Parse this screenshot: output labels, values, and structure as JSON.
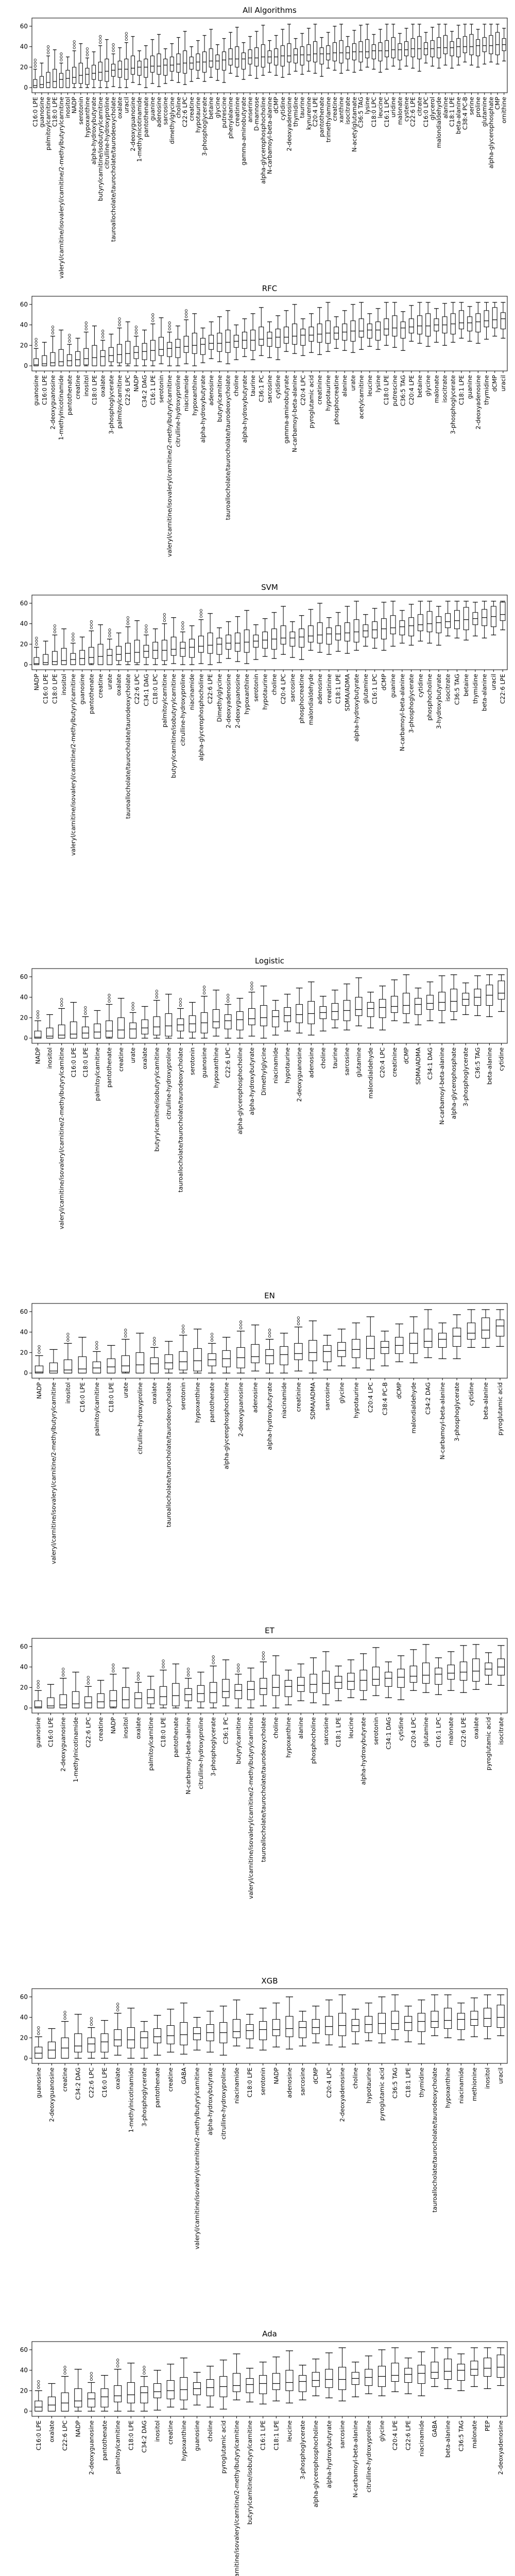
{
  "colors": {
    "box_fill": "#ffffff",
    "stroke": "#000000",
    "background": "#ffffff"
  },
  "chart_data": [
    {
      "type": "box",
      "title": "All Algorithms",
      "ylim": [
        -5,
        68
      ],
      "yticks": [
        0,
        20,
        40,
        60
      ],
      "grid": false,
      "categories": [
        "C16:0 LPE",
        "guanosine",
        "palmitoylcarnitine",
        "C18:0 LPE",
        "valeryl/carnitine/isovaleryl/carnitine/2-methylbutyrylcarnitine",
        "inositol",
        "NADP",
        "serotonin",
        "hypoxanthine",
        "alpha-hydroxybutyrate",
        "butyrylcarnitine/isobutyrylcarnitine",
        "citrulline-hydroxyproline",
        "tauroallocholate/taurocholate/taurodeoxycholate",
        "oxalate",
        "uracil",
        "2-deoxyguanosine",
        "1-methylnicotinamide",
        "pantothenate",
        "guanine",
        "adenosine",
        "sarcosine",
        "dimethylglycine",
        "choline",
        "C22:6 LPC",
        "creatine",
        "hypotaurine",
        "3-phosphoglycerate",
        "betaine",
        "glycine",
        "putrescine",
        "phenylalanine",
        "creatinine",
        "gamma-aminobutyrate",
        "anserine",
        "D-mannose",
        "alpha-glycerophosphocholine",
        "N-carbamoyl-beta-alanine",
        "dCMP",
        "cytidine",
        "2-deoxyadenosine",
        "thymidine",
        "taurine",
        "kynurenine",
        "C20:4 LPE",
        "pantothenate",
        "trimethylamine",
        "creatine",
        "xanthine",
        "isocitrate",
        "N-acetylglutamate",
        "C36:5 TAG",
        "lysine",
        "C18:0 LPC",
        "leucine",
        "C16:1 LPC",
        "uridine",
        "malonate",
        "cysteine",
        "C22:6 LPE",
        "citrate",
        "C16:0 LPC",
        "glycerol",
        "malondialdehyde",
        "alanine",
        "C18:1 LPE",
        "beta-alanine",
        "C38:4 PC-B",
        "serine",
        "proline",
        "glutamine",
        "alpha-glycerophosphate",
        "CMP",
        "ornithine"
      ],
      "series": [
        {
          "median": [
            2,
            3,
            5,
            6,
            8,
            9,
            10,
            12,
            13,
            14,
            15,
            16,
            17,
            18,
            18,
            19,
            20,
            20,
            21,
            21,
            22,
            22,
            23,
            24,
            24,
            25,
            25,
            26,
            26,
            27,
            28,
            28,
            28,
            29,
            29,
            30,
            30,
            30,
            31,
            31,
            32,
            32,
            32,
            33,
            33,
            33,
            34,
            34,
            34,
            35,
            35,
            35,
            36,
            36,
            36,
            37,
            37,
            37,
            38,
            38,
            38,
            38,
            39,
            39,
            39,
            40,
            40,
            40,
            41,
            41,
            41,
            42,
            42
          ]
        }
      ]
    },
    {
      "type": "box",
      "title": "RFC",
      "ylim": [
        -5,
        68
      ],
      "yticks": [
        0,
        20,
        40,
        60
      ],
      "grid": false,
      "categories": [
        "guanosine",
        "C16:0 LPE",
        "2-deoxyguanosine",
        "1-methylnicotinamide",
        "pantothenate",
        "creatine",
        "inositol",
        "C18:0 LPE",
        "oxalate",
        "3-phosphoglycerate",
        "palmitoylcarnitine",
        "C22:6 LPC",
        "NADP",
        "C34:2 DAG",
        "C16:1 LPE",
        "serotonin",
        "valeryl/carnitine/isovaleryl/carnitine/2-methylbutyrylcarnitine",
        "citrulline-hydroxyproline",
        "niacinamide",
        "hypoxanthine",
        "alpha-hydroxybutyrate",
        "adenosine",
        "butyrylcarnitine",
        "tauroallocholate/taurocholate/taurodeoxycholate",
        "choline",
        "alpha-hydroxybutyrate",
        "taurine",
        "C36:1 PC",
        "sarcosine",
        "cytidine",
        "gamma-aminobutyrate",
        "N-carbamoyl-beta-alanine",
        "C20:4 LPC",
        "pyroglutamic acid",
        "creatinine",
        "hypotaurine",
        "phosphocreatine",
        "alanine",
        "urate",
        "acetylcarnitine",
        "leucine",
        "lysine",
        "C18:0 LPE",
        "putrescine",
        "C36:5 TAG",
        "C20:4 LPE",
        "betaine",
        "glycine",
        "malonate",
        "isocitrate",
        "3-phosphoglycerate",
        "C18:1 LPE",
        "guanine",
        "2-deoxyadenosine",
        "thymidine",
        "dCMP",
        "uracil"
      ],
      "series": [
        {
          "median": [
            1,
            2,
            3,
            4,
            5,
            6,
            7,
            8,
            9,
            10,
            11,
            12,
            13,
            14,
            15,
            16,
            17,
            18,
            19,
            20,
            21,
            22,
            22,
            23,
            24,
            25,
            25,
            26,
            27,
            28,
            28,
            29,
            30,
            30,
            31,
            32,
            32,
            33,
            34,
            34,
            35,
            35,
            36,
            37,
            37,
            38,
            39,
            39,
            40,
            40,
            41,
            42,
            42,
            43,
            44,
            45,
            46
          ]
        }
      ]
    },
    {
      "type": "box",
      "title": "SVM",
      "ylim": [
        -5,
        68
      ],
      "yticks": [
        0,
        20,
        40,
        60
      ],
      "grid": false,
      "categories": [
        "NADP",
        "C16:0 LPE",
        "C18:0 LPE",
        "inositol",
        "valeryl/carnitine/isovaleryl/carnitine/2-methylbutyrylcarnitine",
        "guanosine",
        "pantothenate",
        "creatine",
        "urate",
        "oxalate",
        "tauroallocholate/taurocholate/taurodeoxycholate",
        "C22:6 LPC",
        "C34:1 DAG",
        "C18:0 LPC",
        "palmitoylcarnitine",
        "butyrylcarnitine/isobutyrylcarnitine",
        "citrulline-hydroxyproline",
        "niacinamide",
        "alpha-glycerophosphocholine",
        "C22:6 LPE",
        "Dimethylglycine",
        "2-deoxyadenosine",
        "2-deoxyguanosine",
        "hypoxanthine",
        "serotonin",
        "hypotaurine",
        "choline",
        "C20:4 LPC",
        "sarcosine",
        "phosphocreatine",
        "malondialdehyde",
        "adenosine",
        "creatinine",
        "C18:1 LPE",
        "SDMA/ADMA",
        "alpha-hydroxybutyrate",
        "glutamine",
        "C16:1 LPC",
        "dCMP",
        "guanine",
        "N-carbamoyl-beta-alanine",
        "3-phosphoglycerate",
        "cytidine",
        "phosphocholine",
        "3-hydroxybutyrate",
        "isocitrate",
        "C36:5 TAG",
        "betaine",
        "thymidine",
        "beta-alanine",
        "uracil",
        "C22:6 LPE"
      ],
      "series": [
        {
          "median": [
            1,
            2,
            3,
            4,
            5,
            6,
            7,
            8,
            9,
            10,
            11,
            12,
            13,
            14,
            14,
            15,
            16,
            17,
            18,
            19,
            20,
            21,
            21,
            22,
            23,
            24,
            25,
            26,
            26,
            27,
            28,
            29,
            30,
            30,
            31,
            32,
            33,
            34,
            35,
            36,
            37,
            38,
            39,
            40,
            41,
            42,
            43,
            44,
            45,
            46,
            47,
            49
          ]
        }
      ]
    },
    {
      "type": "box",
      "title": "Logistic",
      "ylim": [
        -5,
        68
      ],
      "yticks": [
        0,
        20,
        40,
        60
      ],
      "grid": false,
      "categories": [
        "NADP",
        "inositol",
        "valeryl/carnitine/isovaleryl/carnitine/2-methylbutyrylcarnitine",
        "C16:0 LPE",
        "C18:0 LPE",
        "palmitoylcarnitine",
        "pantothenate",
        "creatine",
        "urate",
        "oxalate",
        "butyrylcarnitine/isobutyrylcarnitine",
        "citrulline-hydroxyproline",
        "tauroallocholate/taurocholate/taurodeoxycholate",
        "serotonin",
        "guanosine",
        "hypoxanthine",
        "C22:6 LPC",
        "alpha-glycerophosphocholine",
        "alpha-hydroxybutyrate",
        "Dimethylglycine",
        "niacinamide",
        "hypotaurine",
        "2-deoxyguanosine",
        "adenosine",
        "choline",
        "taurine",
        "sarcosine",
        "glutamine",
        "malondialdehyde",
        "C20:4 LPC",
        "creatinine",
        "dCMP",
        "SDMA/ADMA",
        "C34:1 DAG",
        "N-carbamoyl-beta-alanine",
        "alpha-glycerophosphate",
        "3-phosphoglycerate",
        "C36:5 TAG",
        "beta-alanine",
        "cytidine"
      ],
      "series": [
        {
          "median": [
            1,
            2,
            3,
            4,
            5,
            6,
            7,
            8,
            9,
            10,
            11,
            12,
            13,
            14,
            15,
            16,
            17,
            18,
            19,
            20,
            21,
            22,
            23,
            24,
            25,
            26,
            27,
            28,
            29,
            30,
            31,
            32,
            33,
            34,
            35,
            36,
            38,
            40,
            42,
            44
          ]
        }
      ]
    },
    {
      "type": "box",
      "title": "EN",
      "ylim": [
        -5,
        68
      ],
      "yticks": [
        0,
        20,
        40,
        60
      ],
      "grid": false,
      "categories": [
        "NADP",
        "valeryl/carnitine/isovaleryl/carnitine/2-methylbutyrylcarnitine",
        "inositol",
        "C16:0 LPE",
        "palmitoylcarnitine",
        "C18:0 LPE",
        "urate",
        "citrulline-hydroxyproline",
        "oxalate",
        "tauroallocholate/taurocholate/taurodeoxycholate",
        "serotonin",
        "hypoxanthine",
        "pantothenate",
        "alpha-glycerophosphocholine",
        "2-deoxyguanosine",
        "adenosine",
        "alpha-hydroxybutyrate",
        "niacinamide",
        "creatinine",
        "SDMA/ADMA",
        "sarcosine",
        "glycine",
        "hypotaurine",
        "C20:4 LPC",
        "C38:4 PC-B",
        "dCMP",
        "malondialdehyde",
        "C34:2 DAG",
        "N-carbamoyl-beta-alanine",
        "3-phosphoglycerate",
        "cytidine",
        "beta-alanine",
        "pyroglutamic acid"
      ],
      "series": [
        {
          "median": [
            1,
            2,
            3,
            4,
            5,
            6,
            7,
            8,
            9,
            10,
            11,
            12,
            13,
            14,
            15,
            16,
            17,
            18,
            19,
            20,
            21,
            22,
            23,
            24,
            25,
            27,
            29,
            31,
            33,
            36,
            39,
            42,
            46
          ]
        }
      ]
    },
    {
      "type": "box",
      "title": "ET",
      "ylim": [
        -5,
        68
      ],
      "yticks": [
        0,
        20,
        40,
        60
      ],
      "grid": false,
      "categories": [
        "guanosine",
        "C16:0 LPE",
        "2-deoxyguanosine",
        "1-methylnicotinamide",
        "C22:6 LPC",
        "creatine",
        "NADP",
        "inositol",
        "oxalate",
        "palmitoylcarnitine",
        "C18:0 LPE",
        "pantothenate",
        "N-carbamoyl-beta-alanine",
        "citrulline-hydroxyproline",
        "3-phosphoglycerate",
        "C36:1 PC",
        "butyrylcarnitine",
        "valeryl/carnitine/isovaleryl/carnitine/2-methylbutyrylcarnitine",
        "tauroallocholate/taurocholate/taurodeoxycholate",
        "choline",
        "hypoxanthine",
        "alanine",
        "phosphocholine",
        "sarcosine",
        "C18:1 LPE",
        "leucine",
        "alpha-hydroxybutyrate",
        "serotonin",
        "C34:1 DAG",
        "cytidine",
        "C20:4 LPC",
        "glutamine",
        "C16:1 LPC",
        "malonate",
        "C22:6 LPE",
        "oxalate",
        "pyroglutamic acid",
        "isocitrate"
      ],
      "series": [
        {
          "median": [
            1,
            2,
            3,
            4,
            5,
            6,
            7,
            8,
            9,
            10,
            11,
            12,
            13,
            14,
            15,
            16,
            17,
            18,
            19,
            20,
            21,
            22,
            23,
            24,
            25,
            26,
            27,
            28,
            29,
            30,
            31,
            32,
            33,
            34,
            35,
            36,
            38,
            40
          ]
        }
      ]
    },
    {
      "type": "box",
      "title": "XGB",
      "ylim": [
        -5,
        68
      ],
      "yticks": [
        0,
        20,
        40,
        60
      ],
      "grid": false,
      "categories": [
        "guanosine",
        "2-deoxyguanosine",
        "creatine",
        "C34:2 DAG",
        "C22:6 LPC",
        "C16:0 LPE",
        "oxalate",
        "1-methylnicotinamide",
        "3-phosphoglycerate",
        "pantothenate",
        "creatine",
        "GABA",
        "valeryl/carnitine/isovaleryl/carnitine/2-methylbutyrylcarnitine",
        "alpha-hydroxybutyrate",
        "citrulline-hydroxyproline",
        "niacinamide",
        "C18:0 LPE",
        "serotonin",
        "NADP",
        "adenosine",
        "sarcosine",
        "dCMP",
        "C20:4 LPC",
        "2-deoxyadenosine",
        "choline",
        "hypotaurine",
        "pyroglutamic acid",
        "C36:5 TAG",
        "C18:1 LPE",
        "thymidine",
        "tauroallocholate/taurocholate/taurodeoxycholate",
        "hypoxanthine",
        "niacinamide",
        "methionine",
        "inositol",
        "uracil"
      ],
      "series": [
        {
          "median": [
            5,
            8,
            10,
            12,
            14,
            16,
            18,
            18,
            20,
            21,
            22,
            23,
            24,
            25,
            25,
            26,
            27,
            28,
            28,
            29,
            30,
            30,
            31,
            32,
            32,
            33,
            34,
            34,
            35,
            36,
            36,
            37,
            38,
            38,
            39,
            40
          ]
        }
      ]
    },
    {
      "type": "box",
      "title": "Ada",
      "ylim": [
        -5,
        68
      ],
      "yticks": [
        0,
        20,
        40,
        60
      ],
      "grid": false,
      "categories": [
        "C16:0 LPE",
        "oxalate",
        "C22:6 LPC",
        "NADP",
        "2-deoxyguanosine",
        "pantothenate",
        "palmitoylcarnitine",
        "C18:0 LPE",
        "C34:2 DAG",
        "inositol",
        "creatine",
        "hypoxanthine",
        "guanosine",
        "choline",
        "pyroglutamic acid",
        "valeryl/carnitine/isovaleryl/carnitine/2-methylbutyrylcarnitine",
        "butyrylcarnitine/isobutyrylcarnitine",
        "C16:1 LPE",
        "C18:1 LPE",
        "leucine",
        "3-phosphoglycerate",
        "alpha-glycerophosphocholine",
        "alpha-hydroxybutyrate",
        "sarcosine",
        "N-carbamoyl-beta-alanine",
        "citrulline-hydroxyproline",
        "glycine",
        "C20:4 LPE",
        "C22:6 LPE",
        "niacinamide",
        "GABA",
        "beta-alanine",
        "C36:5 TAG",
        "malonate",
        "PEP",
        "2-deoxyadenosine"
      ],
      "series": [
        {
          "median": [
            4,
            6,
            8,
            10,
            12,
            14,
            15,
            16,
            18,
            19,
            20,
            21,
            22,
            23,
            24,
            25,
            26,
            27,
            27,
            28,
            29,
            30,
            31,
            31,
            32,
            33,
            34,
            35,
            36,
            37,
            38,
            39,
            40,
            41,
            42,
            43
          ]
        }
      ]
    }
  ]
}
